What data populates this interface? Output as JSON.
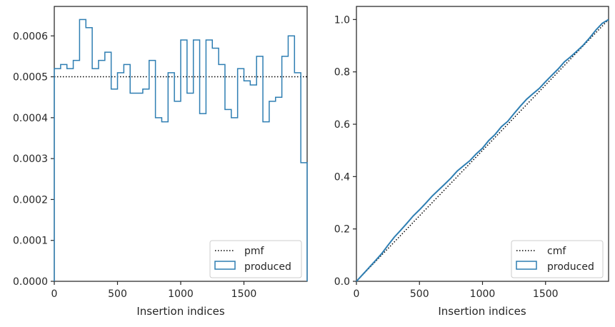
{
  "colors": {
    "hist": "#2e7eb2",
    "ref": "#000000",
    "frame": "#262626"
  },
  "chart_data": [
    {
      "type": "histogram",
      "xlabel": "Insertion indices",
      "ylabel": "",
      "xlim": [
        0,
        2000
      ],
      "ylim": [
        0,
        0.000672
      ],
      "xticks": [
        0,
        500,
        1000,
        1500
      ],
      "xtick_labels": [
        "0",
        "500",
        "1000",
        "1500"
      ],
      "yticks": [
        0,
        0.0001,
        0.0002,
        0.0003,
        0.0004,
        0.0005,
        0.0006
      ],
      "ytick_labels": [
        "0.0000",
        "0.0001",
        "0.0002",
        "0.0003",
        "0.0004",
        "0.0005",
        "0.0006"
      ],
      "grid": false,
      "legend_position": "lower right",
      "legend": [
        "pmf",
        "produced"
      ],
      "series": [
        {
          "name": "produced",
          "style": "step-outline",
          "bin_edges": [
            0,
            50,
            100,
            150,
            200,
            250,
            300,
            350,
            400,
            450,
            500,
            550,
            600,
            650,
            700,
            750,
            800,
            850,
            900,
            950,
            1000,
            1050,
            1100,
            1150,
            1200,
            1250,
            1300,
            1350,
            1400,
            1450,
            1500,
            1550,
            1600,
            1650,
            1700,
            1750,
            1800,
            1850,
            1900,
            1950,
            2000
          ],
          "values": [
            0.00052,
            0.00053,
            0.00052,
            0.00054,
            0.00064,
            0.00062,
            0.00052,
            0.00054,
            0.00056,
            0.00047,
            0.00051,
            0.00053,
            0.00046,
            0.00046,
            0.00047,
            0.00054,
            0.0004,
            0.00039,
            0.00051,
            0.00044,
            0.00059,
            0.00046,
            0.00059,
            0.00041,
            0.00059,
            0.00057,
            0.00053,
            0.00042,
            0.0004,
            0.00052,
            0.00049,
            0.00048,
            0.00055,
            0.00039,
            0.00044,
            0.00045,
            0.00055,
            0.0006,
            0.00051,
            0.00029
          ]
        },
        {
          "name": "pmf",
          "style": "dotted",
          "constant": 0.0005
        }
      ]
    },
    {
      "type": "line",
      "xlabel": "Insertion indices",
      "ylabel": "",
      "xlim": [
        0,
        2000
      ],
      "ylim": [
        0,
        1.05
      ],
      "xticks": [
        0,
        500,
        1000,
        1500
      ],
      "xtick_labels": [
        "0",
        "500",
        "1000",
        "1500"
      ],
      "yticks": [
        0,
        0.2,
        0.4,
        0.6,
        0.8,
        1.0
      ],
      "ytick_labels": [
        "0.0",
        "0.2",
        "0.4",
        "0.6",
        "0.8",
        "1.0"
      ],
      "grid": false,
      "legend_position": "lower right",
      "legend": [
        "cmf",
        "produced"
      ],
      "series": [
        {
          "name": "produced",
          "style": "cumulative-step",
          "derived_from": "cumulative sum of left panel values times bin width"
        },
        {
          "name": "cmf",
          "style": "dotted",
          "x": [
            0,
            2000
          ],
          "y": [
            0,
            1
          ]
        }
      ]
    }
  ]
}
